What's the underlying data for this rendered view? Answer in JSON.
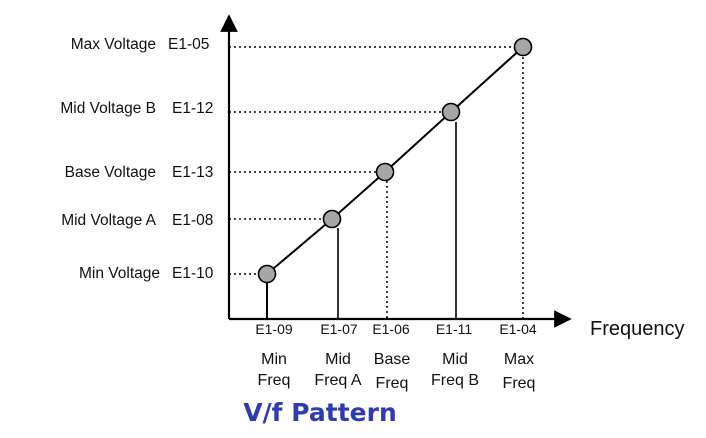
{
  "diagram": {
    "caption": "V/f Pattern",
    "x_axis_label": "Frequency",
    "voltage_levels": [
      {
        "name": "Max Voltage",
        "param": "E1-05"
      },
      {
        "name": "Mid Voltage B",
        "param": "E1-12"
      },
      {
        "name": "Base Voltage",
        "param": "E1-13"
      },
      {
        "name": "Mid Voltage A",
        "param": "E1-08"
      },
      {
        "name": "Min Voltage",
        "param": "E1-10"
      }
    ],
    "frequency_points": [
      {
        "param": "E1-09",
        "line1": "Min",
        "line2": "Freq"
      },
      {
        "param": "E1-07",
        "line1": "Mid",
        "line2": "Freq A"
      },
      {
        "param": "E1-06",
        "line1": "Base",
        "line2": "Freq"
      },
      {
        "param": "E1-11",
        "line1": "Mid",
        "line2": "Freq B"
      },
      {
        "param": "E1-04",
        "line1": "Max",
        "line2": "Freq"
      }
    ],
    "colors": {
      "point_fill": "#a6a6a6",
      "line": "#000000",
      "caption": "#2f3bb3"
    }
  }
}
